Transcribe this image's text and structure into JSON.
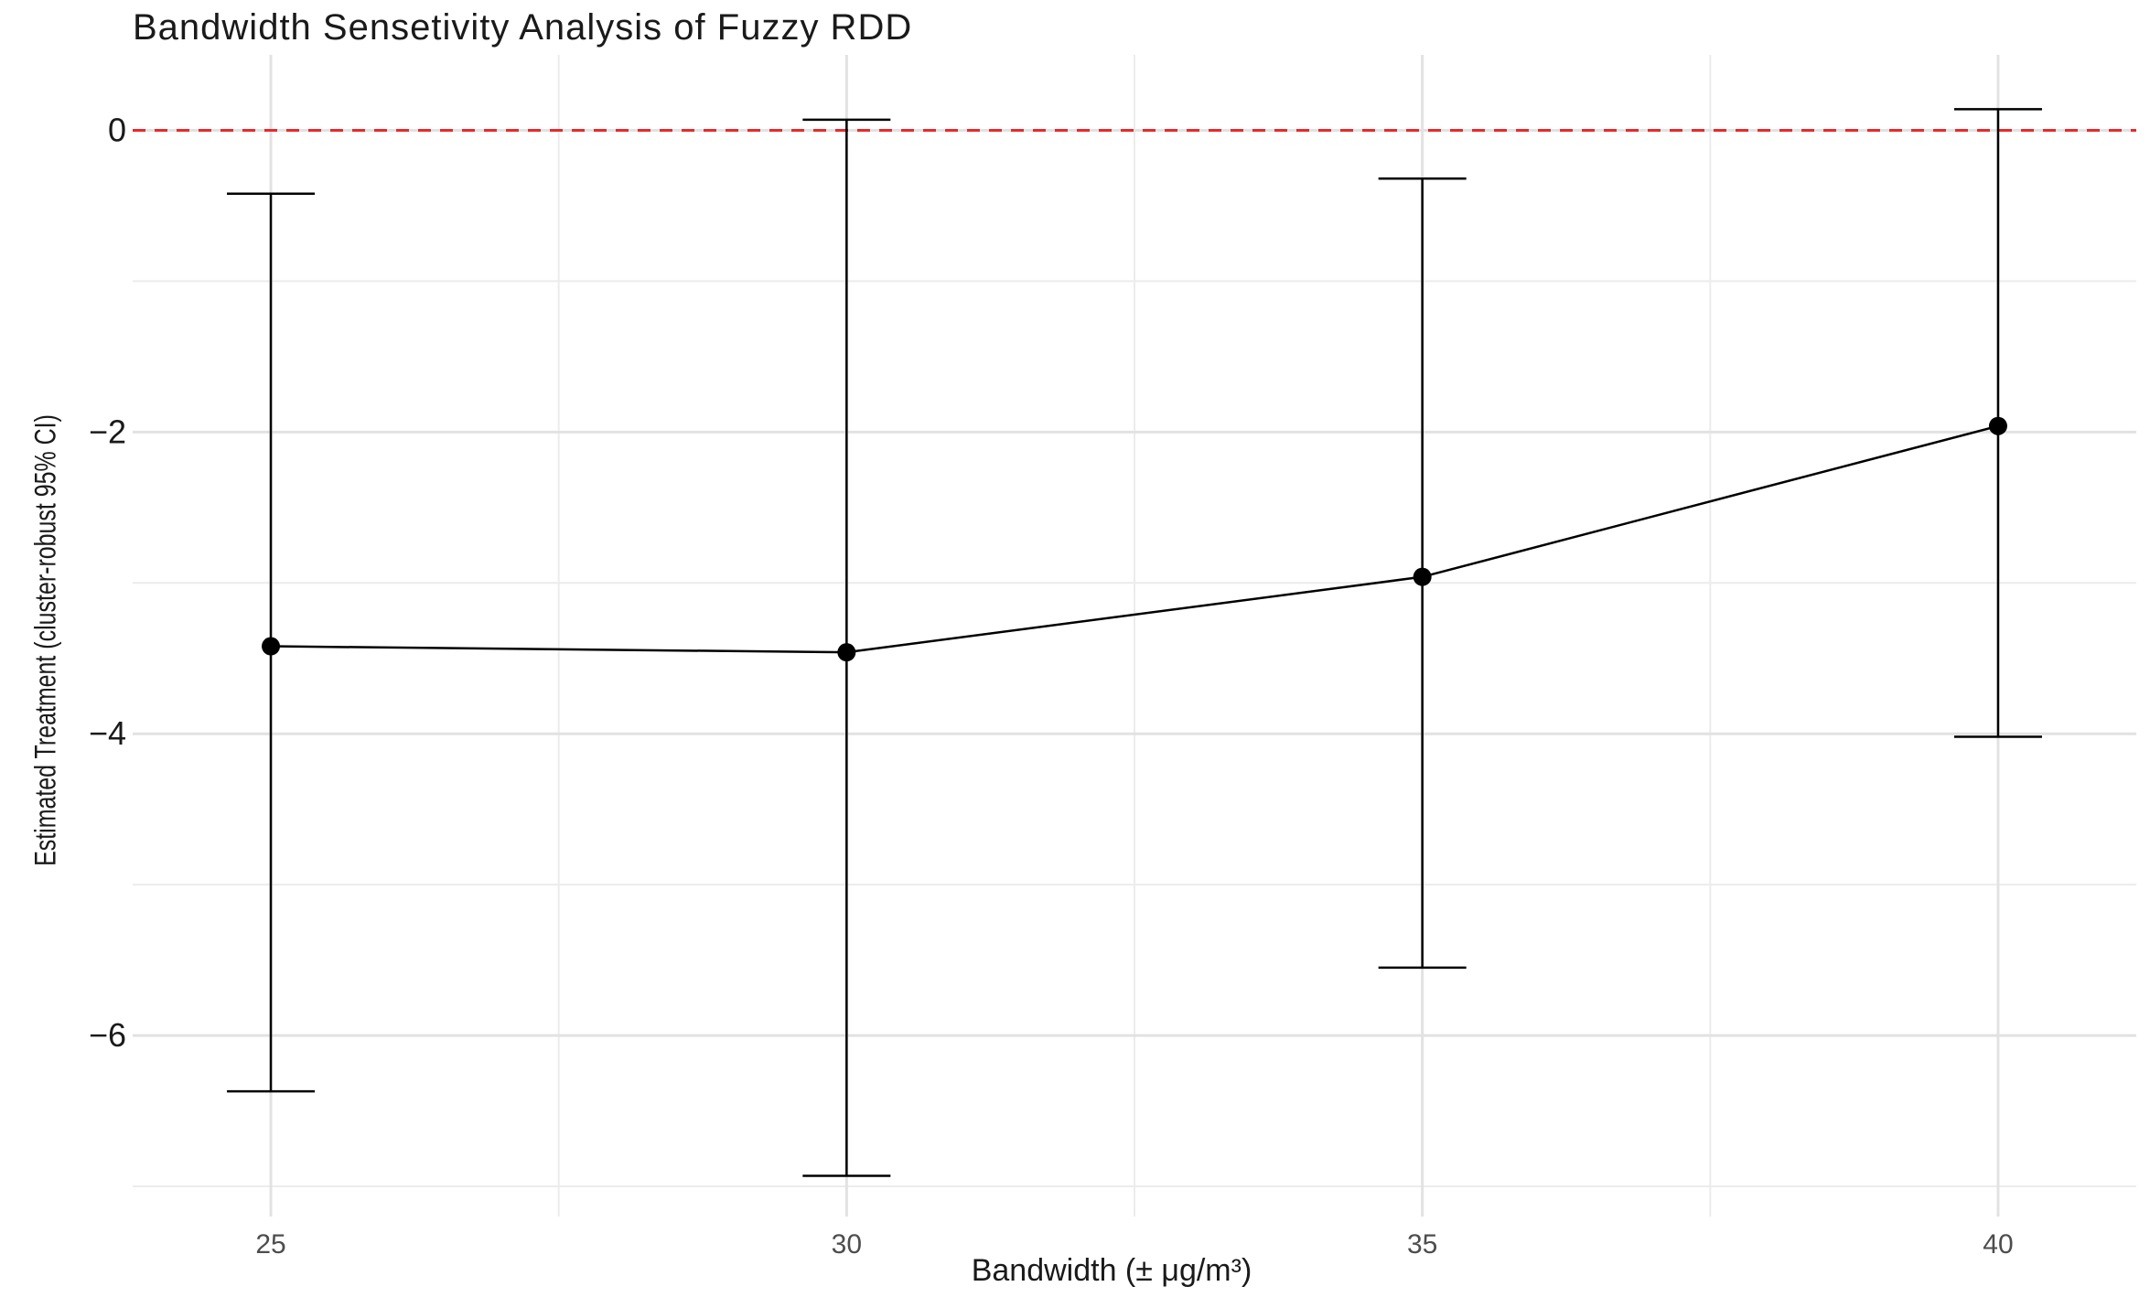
{
  "chart_data": {
    "type": "line",
    "title": "Bandwidth Sensetivity Analysis of Fuzzy RDD",
    "xlabel": "Bandwidth (± μg/m³)",
    "ylabel": "Estimated Treatment (cluster-robust 95% CI)",
    "x_ticks": [
      25,
      30,
      35,
      40
    ],
    "y_ticks": [
      0,
      -2,
      -4,
      -6
    ],
    "xlim": [
      23.8,
      41.2
    ],
    "ylim": [
      -7.2,
      0.5
    ],
    "grid": true,
    "reference_line": {
      "y": 0,
      "style": "dashed",
      "color": "#e8292b"
    },
    "series": [
      {
        "x": [
          25,
          30,
          35,
          40
        ],
        "estimate": [
          -3.42,
          -3.46,
          -2.96,
          -1.96
        ],
        "ci_lower": [
          -6.37,
          -6.93,
          -5.55,
          -4.02
        ],
        "ci_upper": [
          -0.42,
          0.07,
          -0.32,
          0.14
        ],
        "color": "#000000"
      }
    ]
  }
}
